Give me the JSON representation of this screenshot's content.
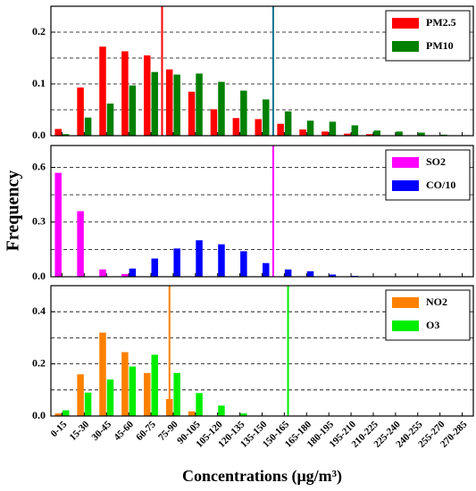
{
  "chart_data": [
    {
      "type": "bar",
      "xlim": [
        0,
        285
      ],
      "categories": [
        "0-15",
        "15-30",
        "30-45",
        "45-60",
        "60-75",
        "75-90",
        "90-105",
        "105-120",
        "120-135",
        "135-150",
        "150-165",
        "165-180",
        "180-195",
        "195-210",
        "210-225",
        "225-240",
        "240-255",
        "255-270",
        "270-285"
      ],
      "series": [
        {
          "name": "PM2.5",
          "color": "#ff0000",
          "values": [
            0.013,
            0.093,
            0.172,
            0.163,
            0.155,
            0.128,
            0.085,
            0.051,
            0.034,
            0.032,
            0.023,
            0.012,
            0.008,
            0.004,
            0.003,
            0,
            0,
            0,
            0
          ]
        },
        {
          "name": "PM10",
          "color": "#008000",
          "values": [
            0.003,
            0.035,
            0.062,
            0.097,
            0.123,
            0.118,
            0.12,
            0.104,
            0.087,
            0.07,
            0.047,
            0.029,
            0.027,
            0.02,
            0.01,
            0.008,
            0.006,
            0.002,
            0.001
          ]
        }
      ],
      "ylim": [
        0,
        0.25
      ],
      "yticks": [
        {
          "value": 0,
          "label": "0.0"
        },
        0.1,
        0.2
      ],
      "ygrid": [
        0.05,
        0.1,
        0.15,
        0.2
      ],
      "vlines": [
        {
          "x": 75,
          "color": "#ff0000"
        },
        {
          "x": 150,
          "color": "#00758f"
        }
      ]
    },
    {
      "type": "bar",
      "xlim": [
        0,
        285
      ],
      "ylabel": "Frequency",
      "categories": [
        "0-15",
        "15-30",
        "30-45",
        "45-60",
        "60-75",
        "75-90",
        "90-105",
        "105-120",
        "120-135",
        "135-150",
        "150-165",
        "165-180",
        "180-195",
        "195-210",
        "210-225",
        "225-240",
        "240-255",
        "255-270",
        "270-285"
      ],
      "series": [
        {
          "name": "SO2",
          "color": "#ff00ff",
          "values": [
            0.57,
            0.36,
            0.04,
            0.015,
            0,
            0,
            0,
            0,
            0,
            0,
            0,
            0,
            0,
            0,
            0,
            0,
            0,
            0,
            0
          ]
        },
        {
          "name": "CO/10",
          "color": "#0000ff",
          "values": [
            0,
            0,
            0,
            0.045,
            0.1,
            0.155,
            0.2,
            0.178,
            0.14,
            0.075,
            0.04,
            0.03,
            0.012,
            0.005,
            0.002,
            0.001,
            0,
            0,
            0
          ]
        }
      ],
      "ylim": [
        0,
        0.72
      ],
      "yticks": [
        {
          "value": 0,
          "label": "0.0"
        },
        0.3,
        0.6
      ],
      "ygrid": [
        0.15,
        0.3,
        0.45,
        0.6
      ],
      "vlines": [
        {
          "x": 150,
          "color": "#ff00ff"
        }
      ]
    },
    {
      "type": "bar",
      "xlim": [
        0,
        285
      ],
      "xlabel": "Concentrations (μg/m³)",
      "categories": [
        "0-15",
        "15-30",
        "30-45",
        "45-60",
        "60-75",
        "75-90",
        "90-105",
        "105-120",
        "120-135",
        "135-150",
        "150-165",
        "165-180",
        "180-195",
        "195-210",
        "210-225",
        "225-240",
        "240-255",
        "255-270",
        "270-285"
      ],
      "series": [
        {
          "name": "NO2",
          "color": "#ff8000",
          "values": [
            0.01,
            0.16,
            0.32,
            0.245,
            0.165,
            0.065,
            0.018,
            0,
            0,
            0,
            0,
            0,
            0,
            0,
            0,
            0,
            0,
            0,
            0
          ]
        },
        {
          "name": "O3",
          "color": "#00ee00",
          "values": [
            0.022,
            0.09,
            0.14,
            0.19,
            0.235,
            0.165,
            0.088,
            0.04,
            0.01,
            0,
            0,
            0,
            0,
            0,
            0,
            0,
            0,
            0,
            0
          ]
        }
      ],
      "ylim": [
        0,
        0.5
      ],
      "yticks": [
        {
          "value": 0,
          "label": "0.0"
        },
        0.2,
        0.4
      ],
      "ygrid": [
        0.1,
        0.2,
        0.3,
        0.4
      ],
      "vlines": [
        {
          "x": 80,
          "color": "#ff8000"
        },
        {
          "x": 160,
          "color": "#00ee00"
        }
      ]
    }
  ]
}
